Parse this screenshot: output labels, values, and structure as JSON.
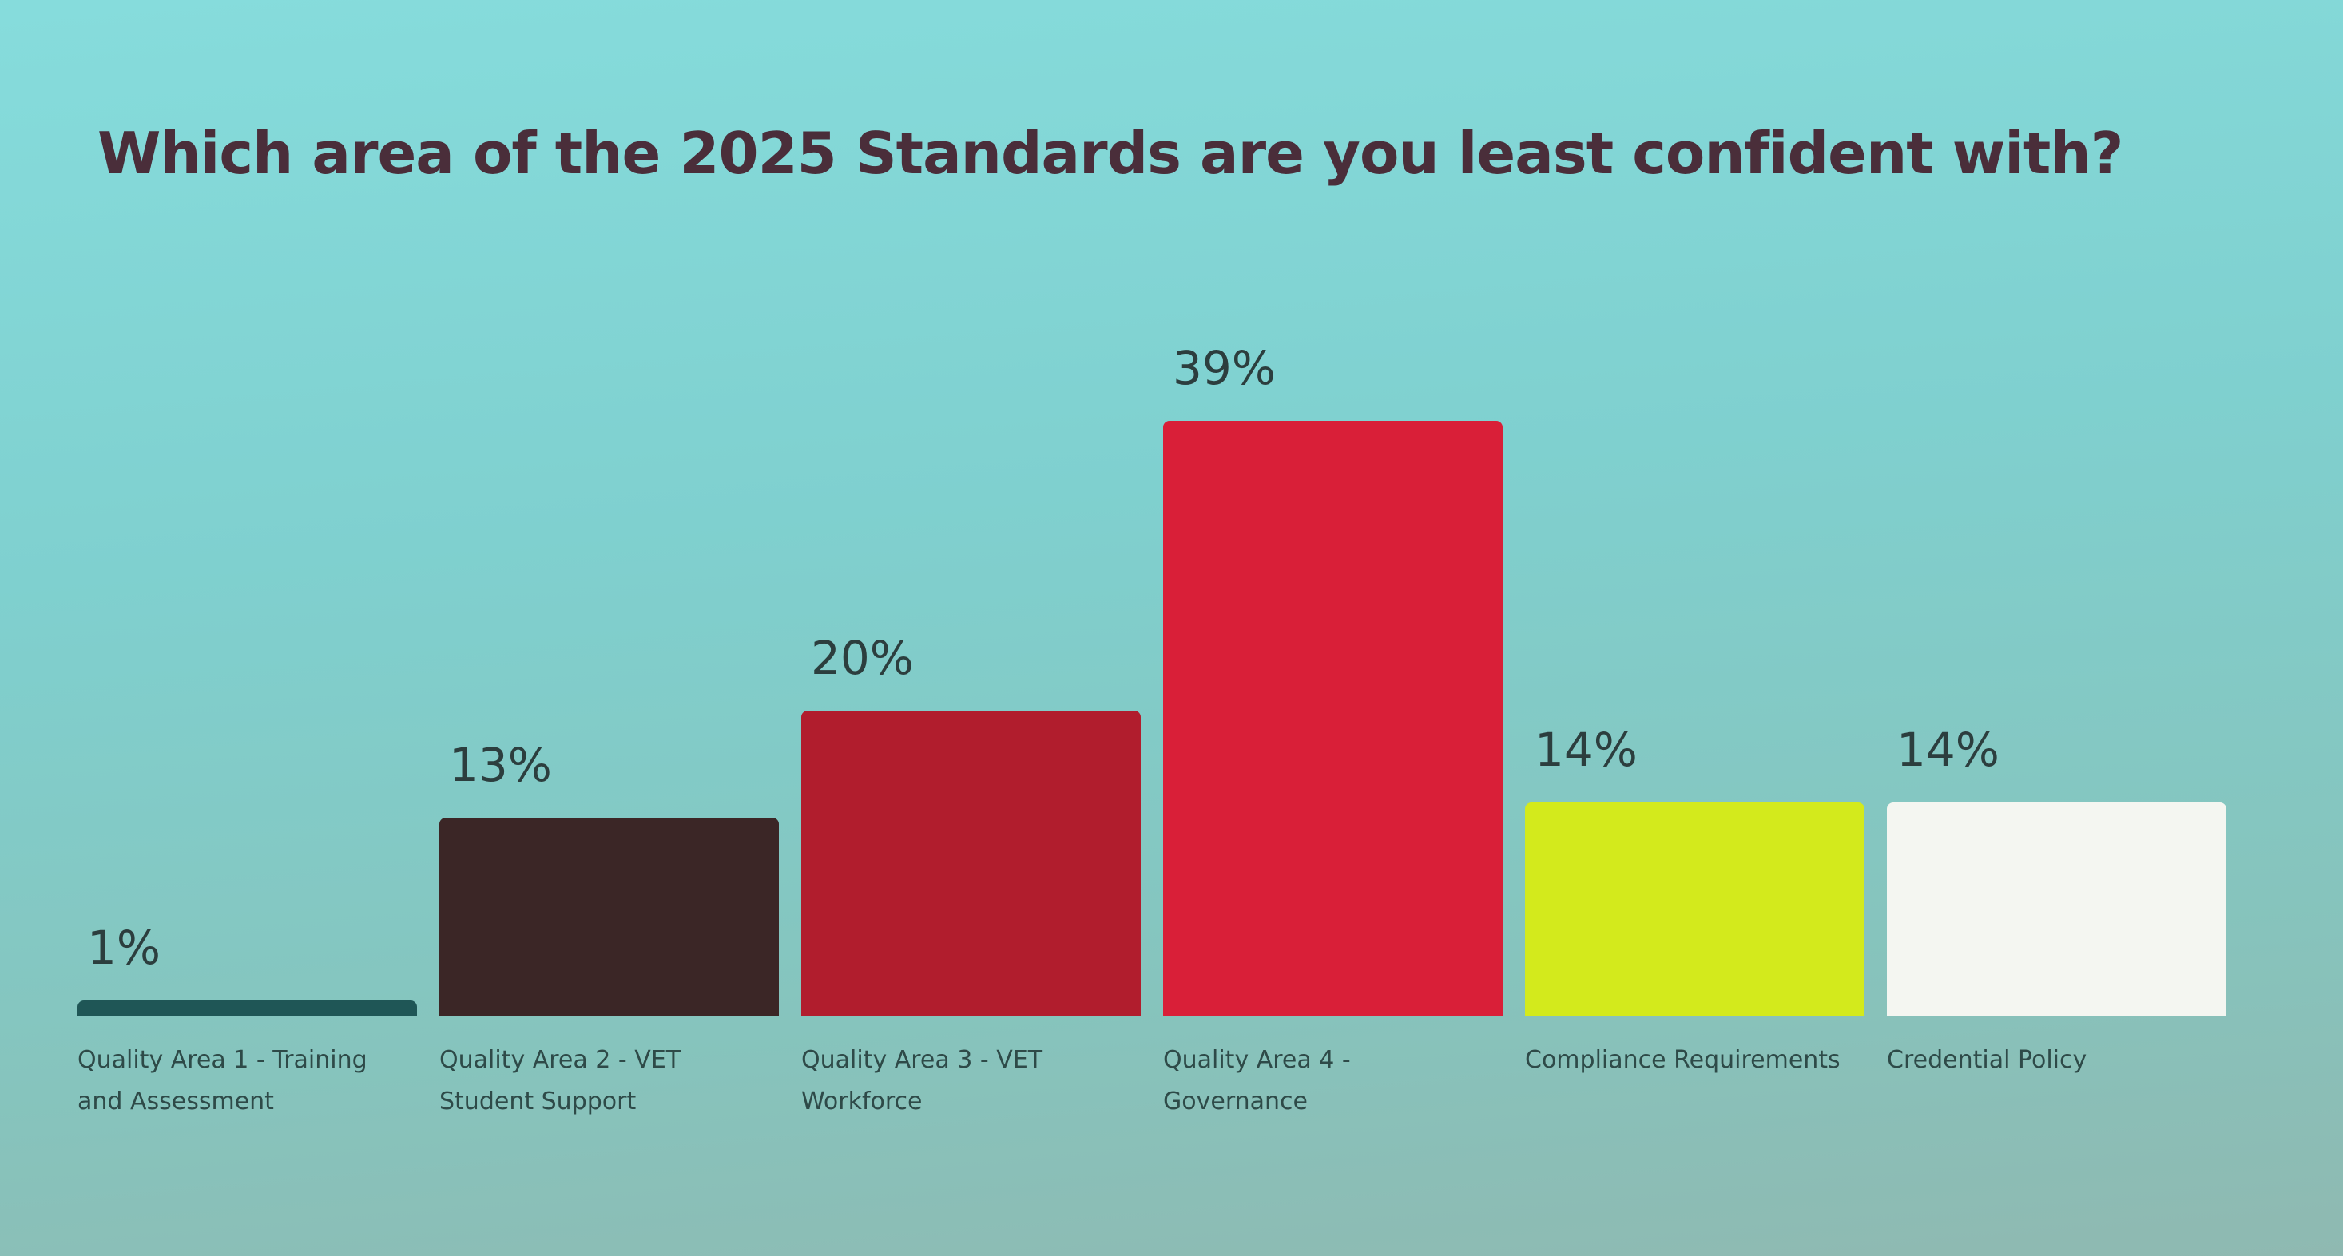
{
  "chart_data": {
    "type": "bar",
    "title": "Which area of the 2025 Standards are you least confident with?",
    "categories": [
      "Quality Area 1 - Training and Assessment",
      "Quality Area 2 - VET Student Support",
      "Quality Area 3 - VET Workforce",
      "Quality Area 4 - Governance",
      "Compliance Requirements",
      "Credential Policy"
    ],
    "values": [
      1,
      13,
      20,
      39,
      14,
      14
    ],
    "value_labels": [
      "1%",
      "13%",
      "20%",
      "39%",
      "14%",
      "14%"
    ],
    "colors": [
      "#1f5656",
      "#3b2626",
      "#b11d2d",
      "#d91f38",
      "#d3ea1c",
      "#f4f6f1"
    ]
  }
}
